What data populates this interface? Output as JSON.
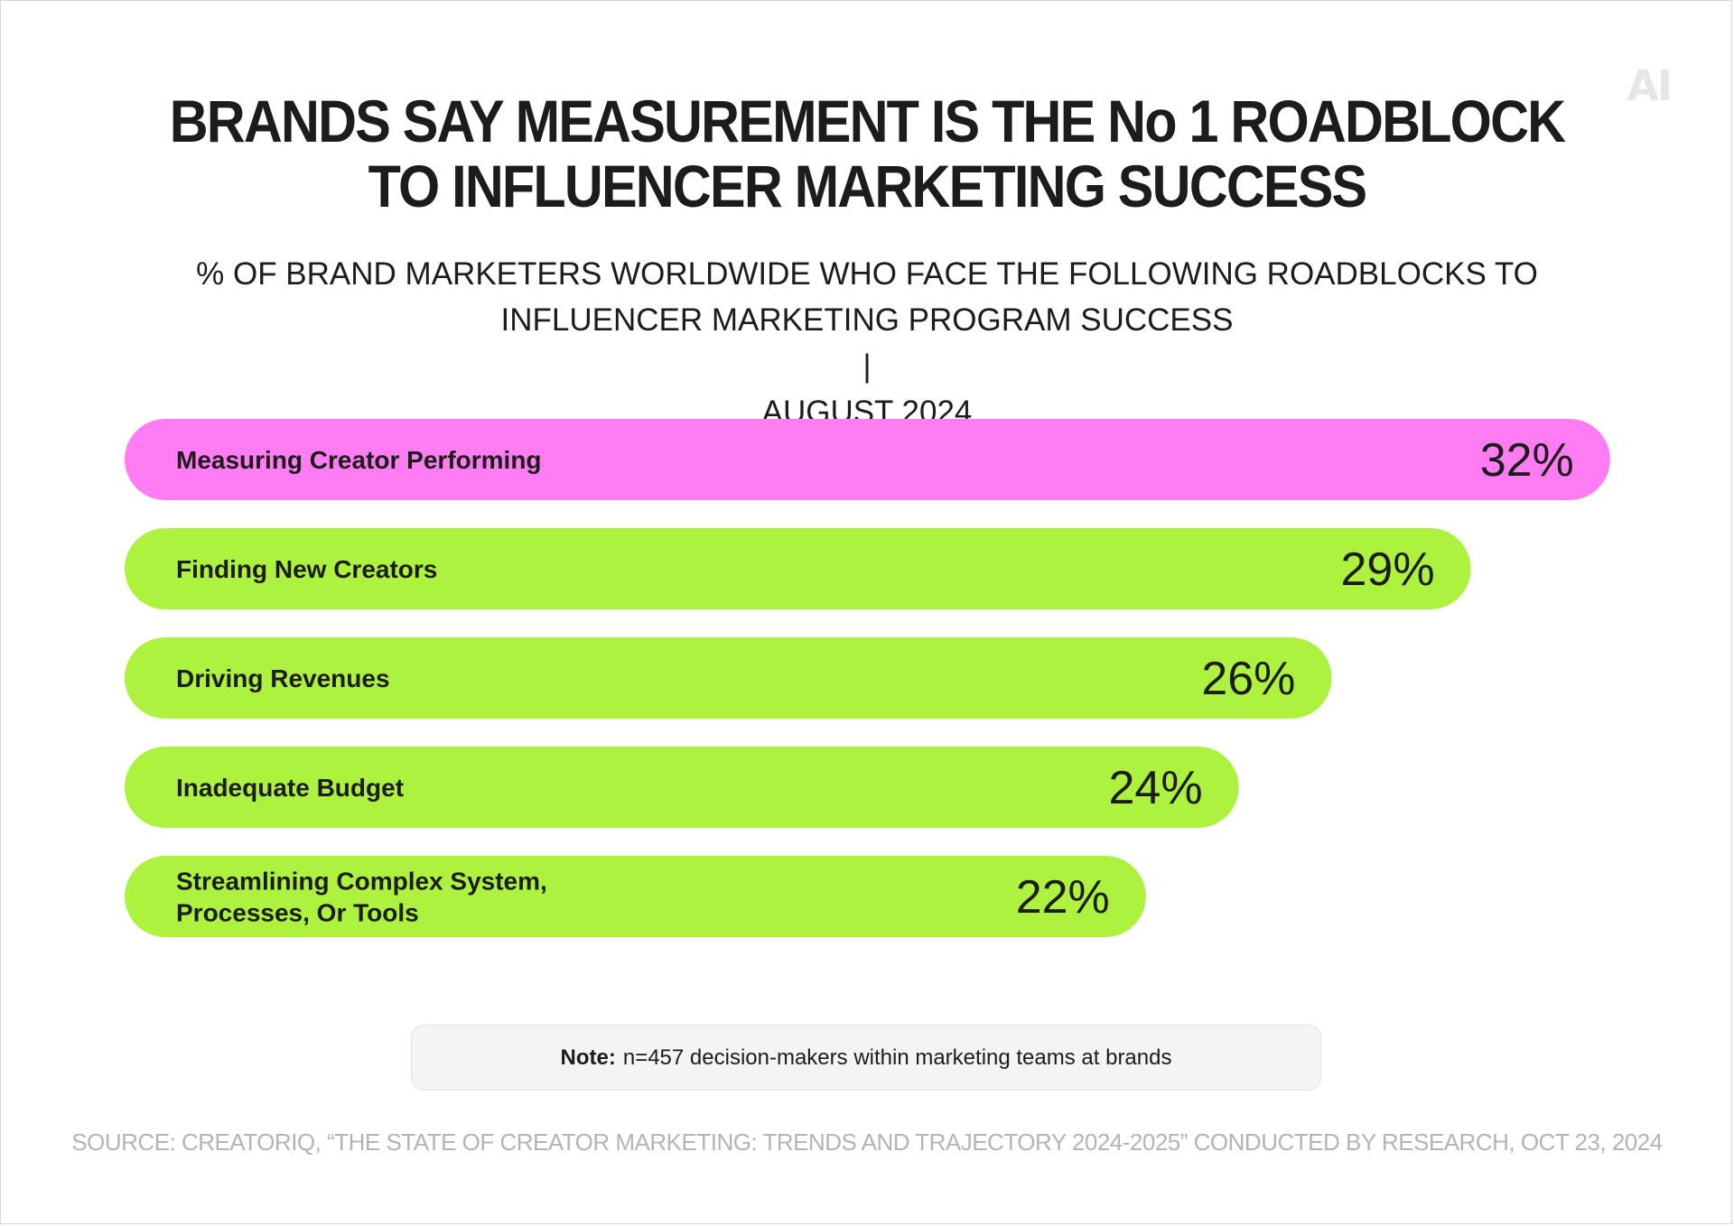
{
  "logo": "AI",
  "header": {
    "title_line1": "BRANDS SAY MEASUREMENT IS THE No 1 ROADBLOCK",
    "title_line2": "TO INFLUENCER MARKETING SUCCESS",
    "subtitle_line1": "% OF BRAND MARKETERS WORLDWIDE WHO FACE THE FOLLOWING ROADBLOCKS TO",
    "subtitle_line2a": "INFLUENCER MARKETING PROGRAM SUCCESS",
    "subtitle_separator": "|",
    "subtitle_line2b": "AUGUST 2024"
  },
  "colors": {
    "highlight": "#ff7cf2",
    "bar": "#adf23e",
    "text": "#1c1c1c"
  },
  "chart_data": {
    "type": "bar",
    "orientation": "horizontal",
    "categories": [
      [
        "Measuring Creator Performing"
      ],
      [
        "Finding New Creators"
      ],
      [
        "Driving Revenues"
      ],
      [
        "Inadequate Budget"
      ],
      [
        "Streamlining Complex System,",
        "Processes, Or Tools"
      ]
    ],
    "values": [
      32,
      29,
      26,
      24,
      22
    ],
    "value_labels": [
      "32%",
      "29%",
      "26%",
      "24%",
      "22%"
    ],
    "highlight_index": 0,
    "unit": "%",
    "grid": false
  },
  "note": {
    "label": "Note:",
    "text": "n=457 decision-makers within marketing teams at brands"
  },
  "source": "SOURCE: CREATORIQ, “THE STATE OF CREATOR MARKETING: TRENDS AND TRAJECTORY 2024-2025” CONDUCTED BY RESEARCH, OCT 23, 2024"
}
